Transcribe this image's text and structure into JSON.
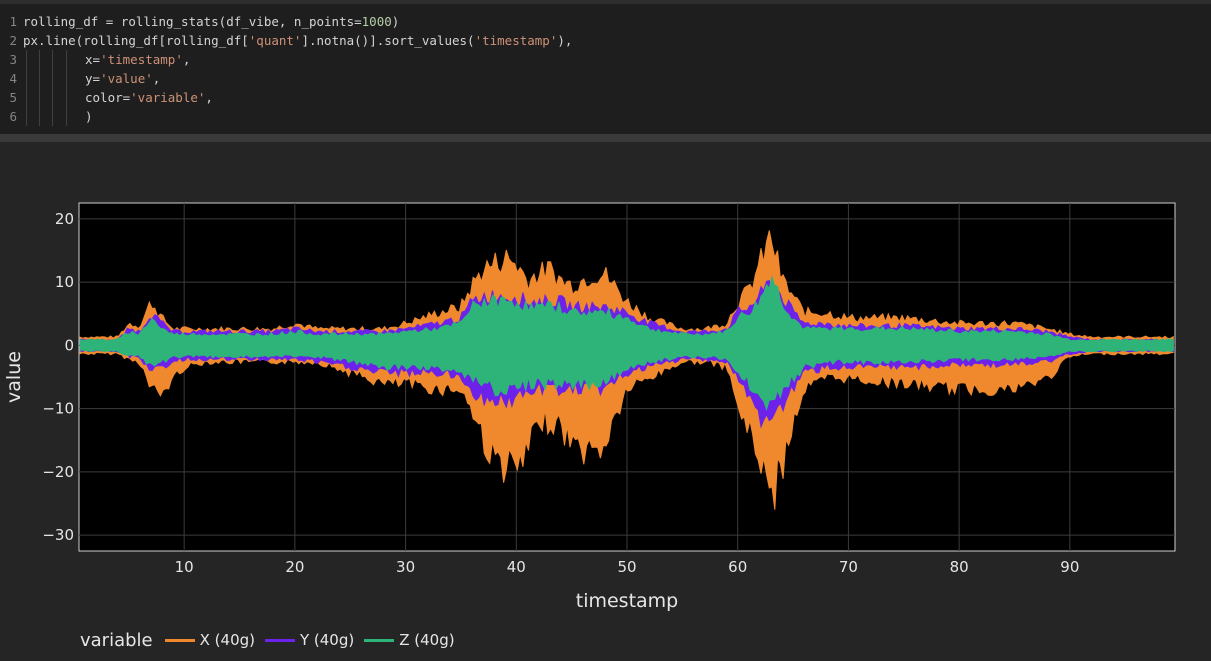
{
  "code": {
    "lines": [
      {
        "num": "1",
        "segments": [
          {
            "t": "rolling_df = rolling_stats(df_vibe, n_points=",
            "c": "plain"
          },
          {
            "t": "1000",
            "c": "num"
          },
          {
            "t": ")",
            "c": "plain"
          }
        ]
      },
      {
        "num": "2",
        "segments": [
          {
            "t": "px.line(rolling_df[rolling_df[",
            "c": "plain"
          },
          {
            "t": "'quant'",
            "c": "str"
          },
          {
            "t": "].notna()].sort_values(",
            "c": "plain"
          },
          {
            "t": "'timestamp'",
            "c": "str"
          },
          {
            "t": "),",
            "c": "plain"
          }
        ]
      },
      {
        "num": "3",
        "segments": [
          {
            "t": "x=",
            "c": "plain"
          },
          {
            "t": "'timestamp'",
            "c": "str"
          },
          {
            "t": ",",
            "c": "plain"
          }
        ]
      },
      {
        "num": "4",
        "segments": [
          {
            "t": "y=",
            "c": "plain"
          },
          {
            "t": "'value'",
            "c": "str"
          },
          {
            "t": ",",
            "c": "plain"
          }
        ]
      },
      {
        "num": "5",
        "segments": [
          {
            "t": "color=",
            "c": "plain"
          },
          {
            "t": "'variable'",
            "c": "str"
          },
          {
            "t": ",",
            "c": "plain"
          }
        ]
      },
      {
        "num": "6",
        "segments": [
          {
            "t": ")",
            "c": "plain"
          }
        ]
      }
    ]
  },
  "chart_data": {
    "type": "line",
    "title": "",
    "xlabel": "timestamp",
    "ylabel": "value",
    "xlim": [
      0.5,
      99.5
    ],
    "ylim": [
      -32.5,
      22.5
    ],
    "x_ticks": [
      10,
      20,
      30,
      40,
      50,
      60,
      70,
      80,
      90
    ],
    "y_ticks": [
      20,
      10,
      0,
      -10,
      -20,
      -30
    ],
    "y_tick_labels": [
      "20",
      "10",
      "0",
      "−10",
      "−20",
      "−30"
    ],
    "grid": true,
    "background": "#000000",
    "legend": {
      "title": "variable",
      "placement": "bottom-left",
      "orientation": "horizontal"
    },
    "x": [
      1,
      4,
      5,
      6,
      7,
      8,
      9,
      10,
      12,
      15,
      18,
      20,
      22,
      25,
      28,
      30,
      33,
      35,
      36,
      37,
      38,
      39,
      40,
      41,
      42,
      43,
      44,
      45,
      46,
      47,
      48,
      50,
      52,
      55,
      57,
      59,
      60,
      61,
      62,
      63,
      64,
      65,
      66,
      68,
      70,
      75,
      80,
      85,
      88,
      90,
      92,
      95,
      99.5
    ],
    "series": [
      {
        "name": "X (40g)",
        "color": "#f0892e",
        "upper": [
          1.5,
          1.5,
          4,
          3.5,
          8,
          5,
          3,
          3,
          3,
          3,
          3,
          4,
          3,
          3,
          3,
          4,
          6,
          7,
          11,
          14,
          15,
          16,
          15,
          12,
          13,
          14,
          12,
          11,
          12,
          13,
          13,
          8,
          5,
          3,
          3,
          4,
          8,
          10,
          15,
          20,
          12,
          9,
          6,
          6,
          5,
          5,
          4,
          4,
          3,
          2,
          1.5,
          1.5,
          1.5
        ],
        "lower": [
          -1.5,
          -1.5,
          -2.5,
          -3,
          -8,
          -9,
          -6,
          -4,
          -3,
          -3,
          -3,
          -3,
          -3,
          -5,
          -7,
          -7,
          -8,
          -8,
          -12,
          -17,
          -21,
          -22,
          -23,
          -20,
          -14,
          -14,
          -15,
          -18,
          -19,
          -20,
          -18,
          -8,
          -6,
          -3,
          -3,
          -4,
          -11,
          -16,
          -20,
          -29,
          -22,
          -14,
          -8,
          -6,
          -6,
          -7,
          -8,
          -8,
          -6,
          -2,
          -1.5,
          -1.5,
          -1.5
        ]
      },
      {
        "name": "Y (40g)",
        "color": "#6c22e8",
        "upper": [
          1,
          1,
          3,
          2.5,
          6,
          4,
          2.5,
          2.5,
          2.5,
          2.5,
          2.5,
          3,
          2.5,
          2.5,
          2.5,
          3,
          4,
          5,
          8,
          9,
          9,
          9,
          9,
          8,
          8,
          8,
          8,
          7,
          7,
          7,
          7,
          6,
          4,
          2.5,
          2.5,
          3,
          6,
          7,
          9,
          12,
          9,
          6,
          4,
          4,
          3.5,
          3.5,
          3,
          3,
          2.5,
          1.5,
          1,
          1,
          1
        ],
        "lower": [
          -1,
          -1,
          -2,
          -2,
          -5,
          -4,
          -3,
          -2.5,
          -2.5,
          -2.5,
          -2.5,
          -2.5,
          -3,
          -4,
          -5,
          -5,
          -5,
          -6,
          -8,
          -10,
          -10,
          -10,
          -10,
          -9,
          -8,
          -8,
          -8,
          -8,
          -8,
          -8,
          -8,
          -5,
          -4,
          -2.5,
          -2.5,
          -3,
          -6,
          -10,
          -13,
          -14,
          -11,
          -8,
          -5,
          -4,
          -4,
          -4,
          -3.5,
          -3.5,
          -3,
          -1.5,
          -1,
          -1,
          -1
        ]
      },
      {
        "name": "Z (40g)",
        "color": "#2eb478",
        "upper": [
          1,
          1,
          2.5,
          2,
          5,
          3,
          2,
          2,
          2,
          2,
          2,
          2.5,
          2,
          2,
          2,
          2.5,
          3,
          4,
          7,
          8,
          8,
          8,
          8,
          7,
          7,
          7,
          7,
          6,
          6,
          6,
          6,
          5,
          3,
          2,
          2,
          2.5,
          5,
          6,
          8,
          13,
          8,
          5,
          3,
          3,
          3,
          3,
          2.5,
          2.5,
          2,
          1,
          1,
          1,
          1
        ],
        "lower": [
          -1,
          -1,
          -2,
          -2,
          -4,
          -3,
          -2,
          -2,
          -2,
          -2,
          -2,
          -2,
          -2,
          -3,
          -4,
          -4,
          -4,
          -5,
          -6,
          -7,
          -8,
          -8,
          -8,
          -7,
          -7,
          -7,
          -7,
          -7,
          -7,
          -7,
          -7,
          -4,
          -3,
          -2,
          -2,
          -2.5,
          -5,
          -7,
          -9,
          -11,
          -8,
          -6,
          -4,
          -3,
          -3,
          -3,
          -2.5,
          -2.5,
          -2,
          -1,
          -1,
          -1,
          -1
        ]
      }
    ]
  }
}
